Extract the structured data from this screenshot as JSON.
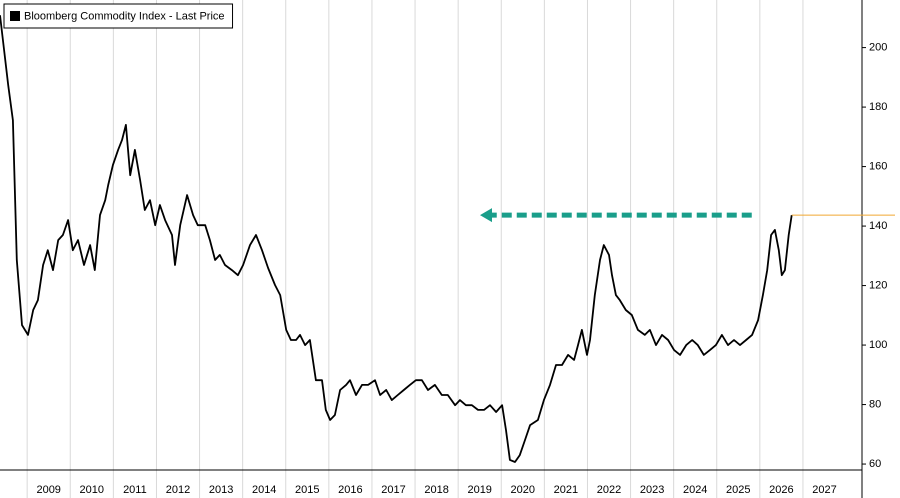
{
  "chart_data": {
    "type": "line",
    "series": [
      {
        "name": "Bloomberg Commodity Index - Last Price",
        "color": "#000000",
        "values": [
          210.9,
          187.4,
          175.6,
          128.6,
          106.7,
          103.4,
          111.8,
          115.1,
          126.9,
          131.9,
          125.2,
          135.3,
          137.0,
          142.0,
          131.9,
          135.3,
          126.9,
          133.6,
          125.2,
          143.7,
          148.7,
          153.8,
          160.5,
          165.6,
          168.9,
          174.0,
          157.1,
          165.6,
          155.5,
          145.4,
          148.7,
          140.3,
          147.1,
          142.0,
          137.0,
          126.9,
          140.3,
          150.4,
          143.7,
          140.3,
          140.3,
          135.3,
          128.6,
          130.3,
          126.9,
          125.2,
          123.5,
          126.9,
          133.6,
          137.0,
          131.9,
          125.9,
          120.2,
          116.8,
          105.1,
          101.7,
          101.7,
          103.4,
          100.0,
          101.7,
          88.2,
          88.2,
          78.2,
          74.8,
          76.5,
          84.9,
          86.6,
          88.2,
          83.2,
          86.6,
          86.6,
          88.2,
          83.2,
          84.9,
          81.5,
          83.2,
          84.9,
          86.6,
          88.2,
          88.2,
          84.9,
          86.6,
          83.2,
          83.2,
          79.8,
          81.5,
          79.8,
          79.8,
          78.2,
          78.2,
          79.8,
          77.5,
          79.8,
          71.4,
          61.4,
          60.7,
          63.0,
          68.1,
          73.1,
          74.8,
          81.5,
          86.6,
          93.3,
          93.3,
          96.7,
          95.0,
          100.0,
          105.1,
          96.7,
          101.7,
          116.8,
          128.6,
          133.6,
          130.3,
          123.5,
          116.8,
          115.1,
          111.8,
          110.1,
          105.1,
          103.4,
          105.1,
          100.0,
          103.4,
          101.7,
          98.3,
          96.7,
          100.0,
          101.7,
          100.0,
          96.7,
          98.3,
          100.0,
          103.4,
          100.0,
          101.7,
          100.0,
          101.7,
          103.4,
          108.4,
          116.8,
          125.2,
          137.0,
          138.7,
          131.9,
          123.5,
          125.2,
          137.0,
          143.7
        ]
      }
    ],
    "x": [
      2008.37,
      2008.56,
      2008.67,
      2008.76,
      2008.88,
      2009.02,
      2009.14,
      2009.25,
      2009.37,
      2009.48,
      2009.6,
      2009.72,
      2009.83,
      2009.95,
      2010.06,
      2010.18,
      2010.32,
      2010.46,
      2010.57,
      2010.69,
      2010.81,
      2010.88,
      2010.99,
      2011.11,
      2011.2,
      2011.29,
      2011.39,
      2011.5,
      2011.62,
      2011.73,
      2011.85,
      2011.97,
      2012.08,
      2012.2,
      2012.36,
      2012.43,
      2012.55,
      2012.71,
      2012.85,
      2012.96,
      2013.13,
      2013.24,
      2013.36,
      2013.47,
      2013.59,
      2013.75,
      2013.89,
      2014.01,
      2014.17,
      2014.31,
      2014.45,
      2014.59,
      2014.75,
      2014.87,
      2015.01,
      2015.12,
      2015.24,
      2015.33,
      2015.45,
      2015.56,
      2015.7,
      2015.84,
      2015.93,
      2016.03,
      2016.14,
      2016.26,
      2016.4,
      2016.49,
      2016.63,
      2016.77,
      2016.91,
      2017.07,
      2017.19,
      2017.33,
      2017.46,
      2017.6,
      2017.74,
      2017.88,
      2018.02,
      2018.16,
      2018.3,
      2018.46,
      2018.62,
      2018.76,
      2018.93,
      2019.04,
      2019.18,
      2019.32,
      2019.46,
      2019.6,
      2019.74,
      2019.88,
      2020.02,
      2020.11,
      2020.2,
      2020.32,
      2020.43,
      2020.55,
      2020.67,
      2020.85,
      2020.99,
      2021.13,
      2021.27,
      2021.41,
      2021.55,
      2021.69,
      2021.78,
      2021.87,
      2021.99,
      2022.06,
      2022.17,
      2022.29,
      2022.38,
      2022.5,
      2022.57,
      2022.66,
      2022.75,
      2022.89,
      2023.03,
      2023.17,
      2023.33,
      2023.45,
      2023.59,
      2023.73,
      2023.87,
      2024.01,
      2024.15,
      2024.29,
      2024.43,
      2024.56,
      2024.7,
      2024.84,
      2024.98,
      2025.12,
      2025.26,
      2025.4,
      2025.54,
      2025.68,
      2025.82,
      2025.96,
      2026.07,
      2026.17,
      2026.26,
      2026.35,
      2026.44,
      2026.51,
      2026.58,
      2026.67,
      2026.74
    ],
    "xlim": [
      2008.37,
      2028.37
    ],
    "xticks": [
      2009,
      2010,
      2011,
      2012,
      2013,
      2014,
      2015,
      2016,
      2017,
      2018,
      2019,
      2020,
      2021,
      2022,
      2023,
      2024,
      2025,
      2026,
      2027
    ],
    "ylim": [
      58,
      216
    ],
    "yticks": [
      60,
      80,
      100,
      120,
      140,
      160,
      180,
      200
    ],
    "legend": "top-left"
  }
}
